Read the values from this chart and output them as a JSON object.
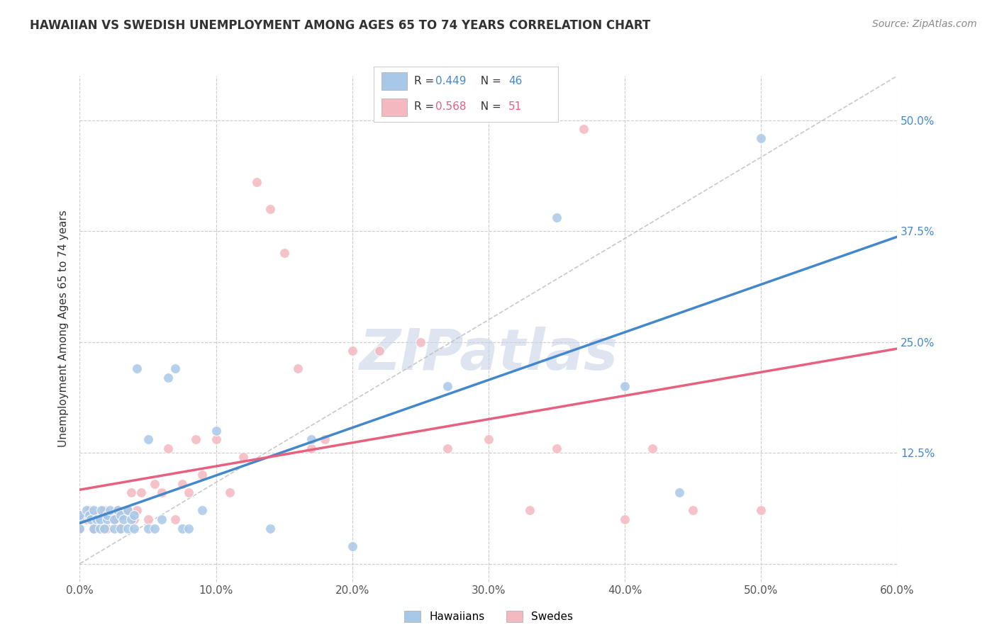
{
  "title": "HAWAIIAN VS SWEDISH UNEMPLOYMENT AMONG AGES 65 TO 74 YEARS CORRELATION CHART",
  "source": "Source: ZipAtlas.com",
  "ylabel": "Unemployment Among Ages 65 to 74 years",
  "xlim": [
    0.0,
    0.6
  ],
  "ylim": [
    -0.02,
    0.55
  ],
  "xticks": [
    0.0,
    0.1,
    0.2,
    0.3,
    0.4,
    0.5,
    0.6
  ],
  "yticks": [
    0.0,
    0.125,
    0.25,
    0.375,
    0.5
  ],
  "hawaiian_x": [
    0.0,
    0.0,
    0.0,
    0.005,
    0.007,
    0.008,
    0.01,
    0.01,
    0.012,
    0.015,
    0.015,
    0.016,
    0.018,
    0.02,
    0.02,
    0.022,
    0.025,
    0.025,
    0.028,
    0.03,
    0.03,
    0.032,
    0.035,
    0.035,
    0.038,
    0.04,
    0.04,
    0.042,
    0.05,
    0.05,
    0.055,
    0.06,
    0.065,
    0.07,
    0.075,
    0.08,
    0.09,
    0.1,
    0.14,
    0.17,
    0.2,
    0.27,
    0.35,
    0.4,
    0.44,
    0.5
  ],
  "hawaiian_y": [
    0.04,
    0.05,
    0.055,
    0.06,
    0.055,
    0.05,
    0.04,
    0.06,
    0.05,
    0.04,
    0.05,
    0.06,
    0.04,
    0.05,
    0.055,
    0.06,
    0.04,
    0.05,
    0.06,
    0.04,
    0.055,
    0.05,
    0.04,
    0.06,
    0.05,
    0.04,
    0.055,
    0.22,
    0.04,
    0.14,
    0.04,
    0.05,
    0.21,
    0.22,
    0.04,
    0.04,
    0.06,
    0.15,
    0.04,
    0.14,
    0.02,
    0.2,
    0.39,
    0.2,
    0.08,
    0.48
  ],
  "swedish_x": [
    0.0,
    0.0,
    0.0,
    0.005,
    0.007,
    0.008,
    0.01,
    0.012,
    0.015,
    0.018,
    0.02,
    0.022,
    0.025,
    0.028,
    0.03,
    0.032,
    0.035,
    0.038,
    0.04,
    0.042,
    0.045,
    0.05,
    0.055,
    0.06,
    0.065,
    0.07,
    0.075,
    0.08,
    0.085,
    0.09,
    0.1,
    0.11,
    0.12,
    0.13,
    0.14,
    0.15,
    0.16,
    0.17,
    0.18,
    0.2,
    0.22,
    0.25,
    0.27,
    0.3,
    0.33,
    0.35,
    0.37,
    0.4,
    0.42,
    0.45,
    0.5
  ],
  "swedish_y": [
    0.04,
    0.05,
    0.055,
    0.05,
    0.06,
    0.055,
    0.04,
    0.055,
    0.05,
    0.06,
    0.04,
    0.055,
    0.05,
    0.06,
    0.04,
    0.055,
    0.06,
    0.08,
    0.05,
    0.06,
    0.08,
    0.05,
    0.09,
    0.08,
    0.13,
    0.05,
    0.09,
    0.08,
    0.14,
    0.1,
    0.14,
    0.08,
    0.12,
    0.43,
    0.4,
    0.35,
    0.22,
    0.13,
    0.14,
    0.24,
    0.24,
    0.25,
    0.13,
    0.14,
    0.06,
    0.13,
    0.49,
    0.05,
    0.13,
    0.06,
    0.06
  ],
  "hawaiian_color": "#a8c8e8",
  "swedish_color": "#f4b8c0",
  "hawaiian_line_color": "#4488cc",
  "swedish_line_color": "#e86080",
  "diagonal_color": "#bbbbbb",
  "watermark_text": "ZIPatlas",
  "watermark_color": "#c8d4e8",
  "background_color": "#ffffff",
  "grid_color": "#cccccc",
  "ytick_color": "#4488cc",
  "xtick_color": "#555555",
  "R_hawaiian": "0.449",
  "N_hawaiian": "46",
  "R_swedish": "0.568",
  "N_swedish": "51"
}
